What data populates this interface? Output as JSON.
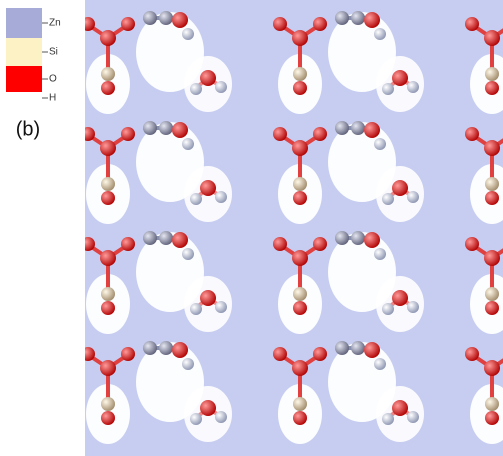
{
  "panel_label": "(b)",
  "legend": [
    {
      "label": "Zn",
      "color": "#a7abd8"
    },
    {
      "label": "Si",
      "color": "#fdf2c6"
    },
    {
      "label": "O",
      "color": "#ff0000"
    },
    {
      "label": "H",
      "color": "#ffffff"
    }
  ]
}
